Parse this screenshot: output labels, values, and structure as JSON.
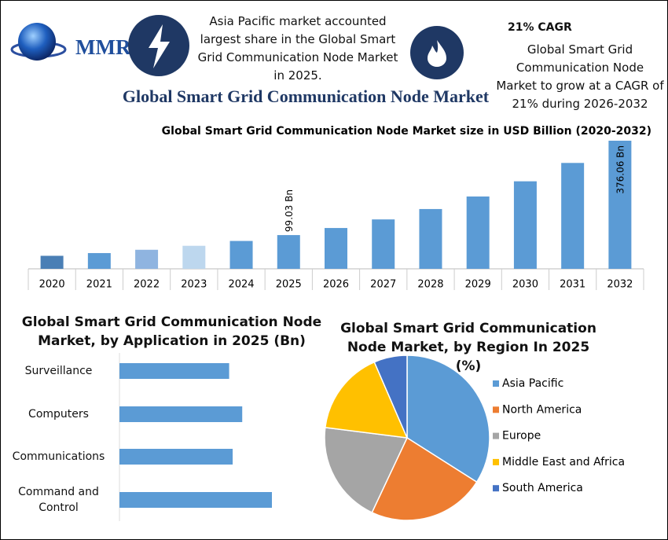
{
  "header": {
    "logo": "MMR",
    "note": "Asia Pacific market accounted largest share in the Global Smart Grid Communication Node Market in 2025.",
    "cagr_title": "21% CAGR",
    "cagr_text": "Global Smart Grid Communication Node Market to grow at a CAGR of 21% during 2026-2032"
  },
  "title": "Global Smart Grid Communication Node Market",
  "chart_data": [
    {
      "type": "bar",
      "title": "Global Smart Grid Communication Node Market size in USD Billion (2020-2032)",
      "categories": [
        "2020",
        "2021",
        "2022",
        "2023",
        "2024",
        "2025",
        "2026",
        "2027",
        "2028",
        "2029",
        "2030",
        "2031",
        "2032"
      ],
      "values": [
        38.2,
        46.2,
        55.9,
        67.6,
        81.8,
        99.03,
        119.8,
        145.0,
        175.5,
        212.3,
        256.9,
        310.8,
        376.06
      ],
      "value_labels": [
        null,
        null,
        null,
        null,
        null,
        "99.03 Bn",
        null,
        null,
        null,
        null,
        null,
        null,
        "376.06 Bn"
      ],
      "colors": [
        "#4a7fb5",
        "#5b9bd5",
        "#8fb4e0",
        "#bdd7ee",
        "#5b9bd5",
        "#5b9bd5",
        "#5b9bd5",
        "#5b9bd5",
        "#5b9bd5",
        "#5b9bd5",
        "#5b9bd5",
        "#5b9bd5",
        "#5b9bd5"
      ]
    },
    {
      "type": "barh",
      "title": "Global Smart Grid Communication Node Market, by Application in 2025 (Bn)",
      "categories": [
        "Surveillance",
        "Computers",
        "Communications",
        "Command and Control"
      ],
      "values": [
        21.8,
        24.4,
        22.5,
        30.3
      ],
      "color": "#5b9bd5"
    },
    {
      "type": "pie",
      "title": "Global Smart Grid Communication Node Market, by Region In 2025 (%)",
      "categories": [
        "Asia Pacific",
        "North America",
        "Europe",
        "Middle East and Africa",
        "South America"
      ],
      "values": [
        34,
        23,
        20,
        16.5,
        6.5
      ],
      "colors": [
        "#5b9bd5",
        "#ed7d31",
        "#a5a5a5",
        "#ffc000",
        "#4472c4"
      ],
      "legend": "right"
    }
  ]
}
